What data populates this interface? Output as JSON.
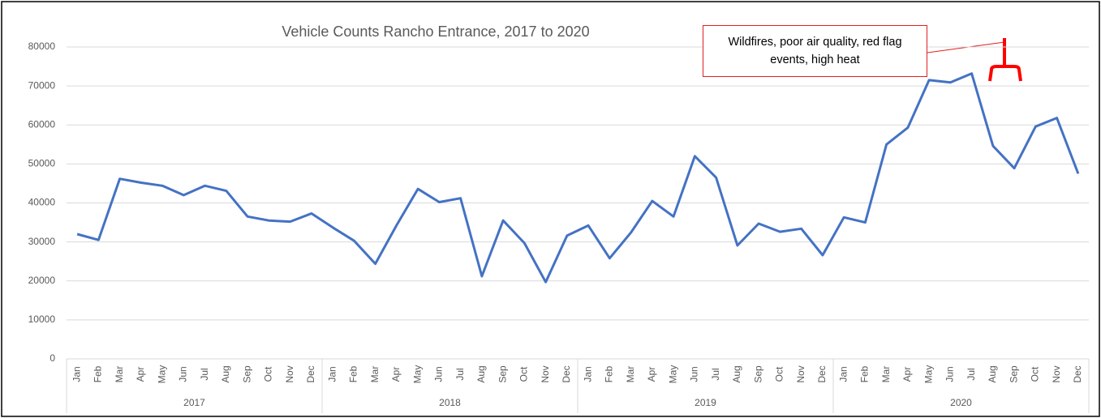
{
  "chart_data": {
    "type": "line",
    "title": "Vehicle Counts Rancho Entrance, 2017 to 2020",
    "annotation": "Wildfires, poor air quality, red flag events, high heat",
    "categories": [
      "Jan",
      "Feb",
      "Mar",
      "Apr",
      "May",
      "Jun",
      "Jul",
      "Aug",
      "Sep",
      "Oct",
      "Nov",
      "Dec",
      "Jan",
      "Feb",
      "Mar",
      "Apr",
      "May",
      "Jun",
      "Jul",
      "Aug",
      "Sep",
      "Oct",
      "Nov",
      "Dec",
      "Jan",
      "Feb",
      "Mar",
      "Apr",
      "May",
      "Jun",
      "Jul",
      "Aug",
      "Sep",
      "Oct",
      "Nov",
      "Dec",
      "Jan",
      "Feb",
      "Mar",
      "Apr",
      "May",
      "Jun",
      "Jul",
      "Aug",
      "Sep",
      "Oct",
      "Nov",
      "Dec"
    ],
    "years": [
      "2017",
      "2018",
      "2019",
      "2020"
    ],
    "values": [
      32000,
      30500,
      46200,
      45200,
      44400,
      42000,
      44400,
      43100,
      36500,
      35500,
      35200,
      37300,
      33700,
      30300,
      24400,
      34300,
      43600,
      40200,
      41200,
      21200,
      35500,
      29700,
      19700,
      31600,
      34200,
      25800,
      32400,
      40500,
      36500,
      52000,
      46500,
      29100,
      34700,
      32600,
      33400,
      26600,
      36300,
      35000,
      55000,
      59300,
      71500,
      70900,
      73200,
      54600,
      48900,
      59600,
      61800,
      47500
    ],
    "color": "#4472c4",
    "ylim": [
      0,
      80000
    ],
    "yticks": [
      0,
      10000,
      20000,
      30000,
      40000,
      50000,
      60000,
      70000,
      80000
    ],
    "grid": true
  }
}
